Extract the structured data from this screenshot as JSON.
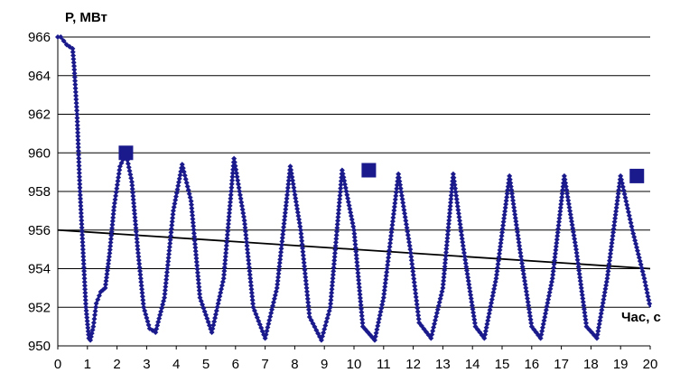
{
  "chart_data": {
    "type": "line",
    "title": "",
    "ylabel": "P, МВт",
    "xlabel": "Час, с",
    "xlim": [
      0,
      20
    ],
    "ylim": [
      950,
      966
    ],
    "x_ticks": [
      "0",
      "1",
      "2",
      "3",
      "4",
      "5",
      "6",
      "7",
      "8",
      "9",
      "10",
      "11",
      "12",
      "13",
      "14",
      "15",
      "16",
      "17",
      "18",
      "19",
      "20"
    ],
    "y_ticks": [
      "950",
      "952",
      "954",
      "956",
      "958",
      "960",
      "962",
      "964",
      "966"
    ],
    "grid": "horizontal",
    "legend": "none",
    "colors": {
      "series": "#1a1a8c",
      "trend": "#000000",
      "grid": "#000000"
    },
    "series": [
      {
        "points": [
          [
            0.0,
            966.0
          ],
          [
            0.1,
            966.0
          ],
          [
            0.2,
            965.8
          ],
          [
            0.3,
            965.6
          ],
          [
            0.4,
            965.5
          ],
          [
            0.5,
            965.4
          ],
          [
            0.55,
            964.5
          ],
          [
            0.65,
            962.0
          ],
          [
            0.75,
            958.0
          ],
          [
            0.85,
            955.0
          ],
          [
            0.95,
            952.0
          ],
          [
            1.05,
            950.4
          ],
          [
            1.1,
            950.3
          ],
          [
            1.2,
            951.0
          ],
          [
            1.3,
            952.2
          ],
          [
            1.45,
            952.8
          ],
          [
            1.6,
            953.0
          ],
          [
            1.75,
            954.8
          ],
          [
            1.9,
            957.2
          ],
          [
            2.1,
            959.3
          ],
          [
            2.3,
            960.0
          ],
          [
            2.5,
            958.5
          ],
          [
            2.7,
            955.0
          ],
          [
            2.9,
            952.0
          ],
          [
            3.1,
            950.9
          ],
          [
            3.3,
            950.7
          ],
          [
            3.6,
            952.5
          ],
          [
            3.9,
            957.0
          ],
          [
            4.2,
            959.4
          ],
          [
            4.5,
            957.5
          ],
          [
            4.8,
            952.5
          ],
          [
            5.2,
            950.7
          ],
          [
            5.6,
            953.5
          ],
          [
            5.95,
            959.7
          ],
          [
            6.3,
            956.5
          ],
          [
            6.6,
            952.0
          ],
          [
            7.0,
            950.4
          ],
          [
            7.4,
            953.0
          ],
          [
            7.85,
            959.3
          ],
          [
            8.2,
            956.0
          ],
          [
            8.5,
            951.5
          ],
          [
            8.9,
            950.3
          ],
          [
            9.2,
            952.0
          ],
          [
            9.6,
            959.1
          ],
          [
            10.0,
            956.0
          ],
          [
            10.3,
            951.0
          ],
          [
            10.7,
            950.3
          ],
          [
            11.0,
            952.5
          ],
          [
            11.5,
            958.9
          ],
          [
            11.9,
            955.0
          ],
          [
            12.2,
            951.2
          ],
          [
            12.6,
            950.4
          ],
          [
            13.0,
            953.0
          ],
          [
            13.35,
            958.9
          ],
          [
            13.7,
            955.0
          ],
          [
            14.1,
            951.0
          ],
          [
            14.4,
            950.4
          ],
          [
            14.8,
            953.5
          ],
          [
            15.25,
            958.8
          ],
          [
            15.6,
            955.0
          ],
          [
            16.0,
            951.0
          ],
          [
            16.3,
            950.4
          ],
          [
            16.7,
            953.5
          ],
          [
            17.1,
            958.8
          ],
          [
            17.5,
            955.0
          ],
          [
            17.85,
            951.0
          ],
          [
            18.2,
            950.4
          ],
          [
            18.55,
            953.5
          ],
          [
            19.0,
            958.8
          ],
          [
            19.4,
            956.0
          ],
          [
            19.8,
            953.5
          ],
          [
            20.0,
            952.0
          ]
        ]
      },
      {
        "kind": "markers",
        "points": [
          [
            2.3,
            960.0
          ],
          [
            10.5,
            959.1
          ],
          [
            19.55,
            958.8
          ]
        ]
      },
      {
        "kind": "trend",
        "points": [
          [
            0,
            956.0
          ],
          [
            20,
            954.0
          ]
        ]
      }
    ]
  }
}
